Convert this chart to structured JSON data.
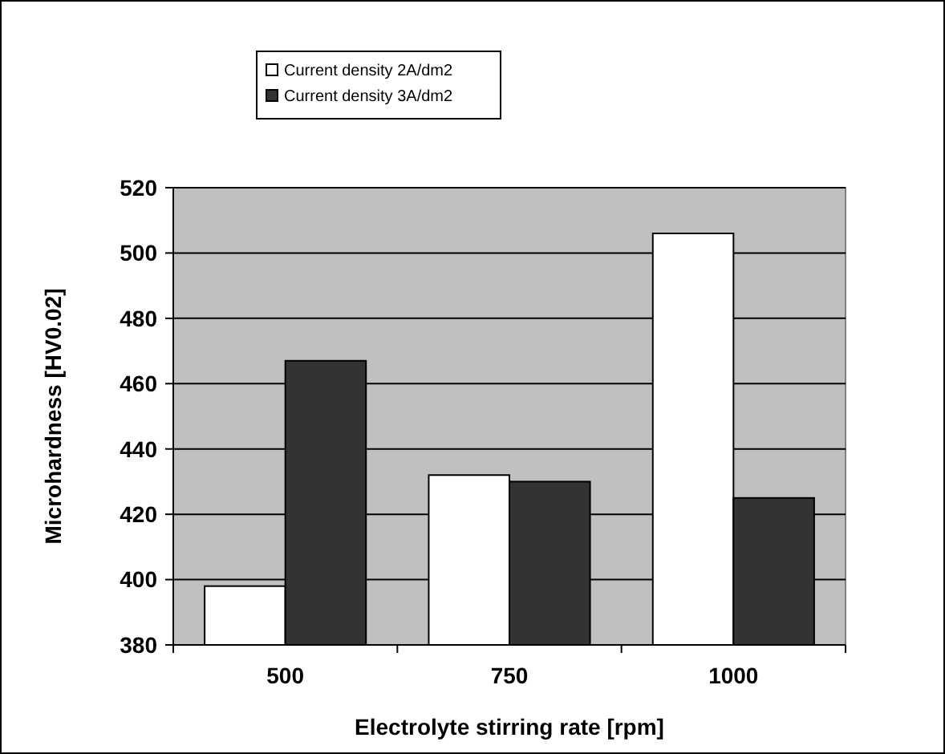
{
  "chart_data": {
    "type": "bar",
    "xlabel": "Electrolyte stirring rate [rpm]",
    "ylabel": "Microhardness [HV0.02]",
    "categories": [
      "500",
      "750",
      "1000"
    ],
    "series": [
      {
        "name": "Current density 2A/dm2",
        "color": "#ffffff",
        "values": [
          398,
          432,
          506
        ]
      },
      {
        "name": "Current density 3A/dm2",
        "color": "#333333",
        "values": [
          467,
          430,
          425
        ]
      }
    ],
    "ylim": [
      380,
      520
    ],
    "yticks": [
      380,
      400,
      420,
      440,
      460,
      480,
      500,
      520
    ],
    "grid": "y",
    "legend": "top"
  }
}
